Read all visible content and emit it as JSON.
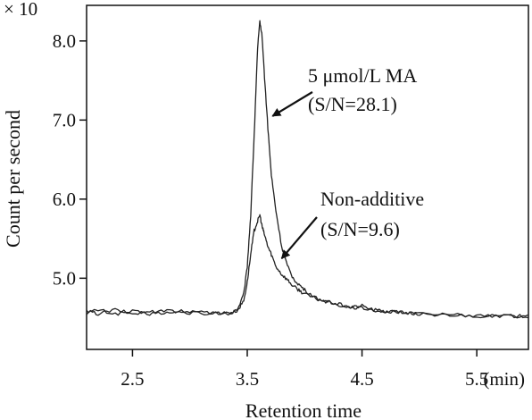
{
  "chart_data": {
    "type": "line",
    "title": "",
    "xlabel": "Retention time",
    "ylabel": "Count per second",
    "y_multiplier": "× 10",
    "xlim": [
      2.1,
      5.95
    ],
    "ylim": [
      4.1,
      8.45
    ],
    "x_ticks": [
      {
        "value": 2.5,
        "label": "2.5"
      },
      {
        "value": 3.5,
        "label": "3.5"
      },
      {
        "value": 4.5,
        "label": "4.5"
      },
      {
        "value": 5.5,
        "label": "5.5"
      }
    ],
    "x_unit_label": "(min)",
    "y_ticks": [
      {
        "value": 5.0,
        "label": "5.0"
      },
      {
        "value": 6.0,
        "label": "6.0"
      },
      {
        "value": 7.0,
        "label": "7.0"
      },
      {
        "value": 8.0,
        "label": "8.0"
      }
    ],
    "grid": false,
    "series": [
      {
        "name": "5 μmol/L MA",
        "color": "#222222",
        "x": [
          2.1,
          2.2,
          2.35,
          2.5,
          2.65,
          2.8,
          2.95,
          3.1,
          3.25,
          3.35,
          3.42,
          3.47,
          3.5,
          3.53,
          3.56,
          3.59,
          3.61,
          3.63,
          3.65,
          3.68,
          3.71,
          3.75,
          3.8,
          3.85,
          3.9,
          3.95,
          4.0,
          4.1,
          4.2,
          4.3,
          4.4,
          4.5,
          4.6,
          4.7,
          4.8,
          4.9,
          5.0,
          5.2,
          5.4,
          5.6,
          5.8,
          5.95
        ],
        "y": [
          4.56,
          4.6,
          4.55,
          4.58,
          4.55,
          4.6,
          4.56,
          4.57,
          4.55,
          4.56,
          4.62,
          4.8,
          5.15,
          5.8,
          6.8,
          7.9,
          8.25,
          8.05,
          7.55,
          6.9,
          6.3,
          5.85,
          5.4,
          5.15,
          5.0,
          4.92,
          4.85,
          4.75,
          4.7,
          4.66,
          4.64,
          4.62,
          4.6,
          4.58,
          4.57,
          4.56,
          4.55,
          4.54,
          4.53,
          4.52,
          4.52,
          4.52
        ]
      },
      {
        "name": "Non-additive",
        "color": "#222222",
        "x": [
          2.1,
          2.2,
          2.35,
          2.5,
          2.65,
          2.8,
          2.95,
          3.1,
          3.25,
          3.35,
          3.42,
          3.47,
          3.5,
          3.53,
          3.56,
          3.59,
          3.61,
          3.63,
          3.65,
          3.68,
          3.71,
          3.75,
          3.8,
          3.85,
          3.9,
          3.95,
          4.0,
          4.1,
          4.2,
          4.3,
          4.4,
          4.5,
          4.6,
          4.7,
          4.8,
          4.9,
          5.0,
          5.2,
          5.4,
          5.6,
          5.8,
          5.95
        ],
        "y": [
          4.58,
          4.55,
          4.6,
          4.55,
          4.58,
          4.56,
          4.59,
          4.55,
          4.57,
          4.55,
          4.6,
          4.72,
          4.95,
          5.3,
          5.6,
          5.72,
          5.8,
          5.65,
          5.55,
          5.4,
          5.3,
          5.15,
          5.05,
          4.98,
          4.9,
          4.85,
          4.8,
          4.74,
          4.7,
          4.67,
          4.63,
          4.65,
          4.6,
          4.58,
          4.57,
          4.56,
          4.55,
          4.54,
          4.53,
          4.52,
          4.52,
          4.52
        ]
      }
    ],
    "annotations": [
      {
        "text": "5 μmol/L MA",
        "text2": "(S/N=28.1)",
        "target_x": 3.72,
        "target_y": 7.05
      },
      {
        "text": "Non-additive",
        "text2": "(S/N=9.6)",
        "target_x": 3.8,
        "target_y": 5.25
      }
    ]
  }
}
